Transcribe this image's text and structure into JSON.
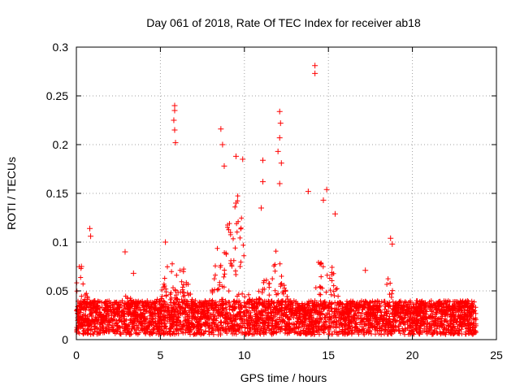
{
  "chart_data": {
    "type": "scatter",
    "title": "Day 061 of 2018, Rate Of TEC Index for receiver ab18",
    "xlabel": "GPS time / hours",
    "ylabel": "ROTI / TECUs",
    "xlim": [
      0,
      25
    ],
    "ylim": [
      0,
      0.3
    ],
    "xticks": [
      0,
      5,
      10,
      15,
      20,
      25
    ],
    "xtick_labels": [
      "0",
      "5",
      "10",
      "15",
      "20",
      "25"
    ],
    "yticks": [
      0,
      0.05,
      0.1,
      0.15,
      0.2,
      0.25,
      0.3
    ],
    "ytick_labels": [
      "0",
      "0.05",
      "0.1",
      "0.15",
      "0.2",
      "0.25",
      "0.3"
    ],
    "grid": true,
    "marker": "+",
    "marker_color": "#ff0000",
    "series": [
      {
        "name": "ROTI",
        "data_extent": [
          0,
          23.8
        ],
        "typical_band": [
          0.005,
          0.04
        ],
        "notable_points": [
          {
            "x": 0.3,
            "y": 0.075
          },
          {
            "x": 0.8,
            "y": 0.114
          },
          {
            "x": 0.85,
            "y": 0.106
          },
          {
            "x": 2.9,
            "y": 0.09
          },
          {
            "x": 3.4,
            "y": 0.068
          },
          {
            "x": 5.3,
            "y": 0.1
          },
          {
            "x": 5.85,
            "y": 0.24
          },
          {
            "x": 5.85,
            "y": 0.235
          },
          {
            "x": 5.8,
            "y": 0.225
          },
          {
            "x": 5.85,
            "y": 0.215
          },
          {
            "x": 5.9,
            "y": 0.202
          },
          {
            "x": 8.6,
            "y": 0.216
          },
          {
            "x": 8.7,
            "y": 0.2
          },
          {
            "x": 8.8,
            "y": 0.178
          },
          {
            "x": 9.5,
            "y": 0.188
          },
          {
            "x": 9.9,
            "y": 0.185
          },
          {
            "x": 9.5,
            "y": 0.14
          },
          {
            "x": 11.1,
            "y": 0.184
          },
          {
            "x": 11.1,
            "y": 0.162
          },
          {
            "x": 11.0,
            "y": 0.135
          },
          {
            "x": 12.1,
            "y": 0.234
          },
          {
            "x": 12.15,
            "y": 0.222
          },
          {
            "x": 12.1,
            "y": 0.207
          },
          {
            "x": 12.0,
            "y": 0.193
          },
          {
            "x": 12.2,
            "y": 0.181
          },
          {
            "x": 12.1,
            "y": 0.16
          },
          {
            "x": 13.8,
            "y": 0.152
          },
          {
            "x": 14.2,
            "y": 0.281
          },
          {
            "x": 14.2,
            "y": 0.273
          },
          {
            "x": 14.9,
            "y": 0.154
          },
          {
            "x": 14.7,
            "y": 0.143
          },
          {
            "x": 15.4,
            "y": 0.129
          },
          {
            "x": 17.2,
            "y": 0.071
          },
          {
            "x": 18.7,
            "y": 0.104
          },
          {
            "x": 18.8,
            "y": 0.098
          }
        ]
      }
    ]
  }
}
